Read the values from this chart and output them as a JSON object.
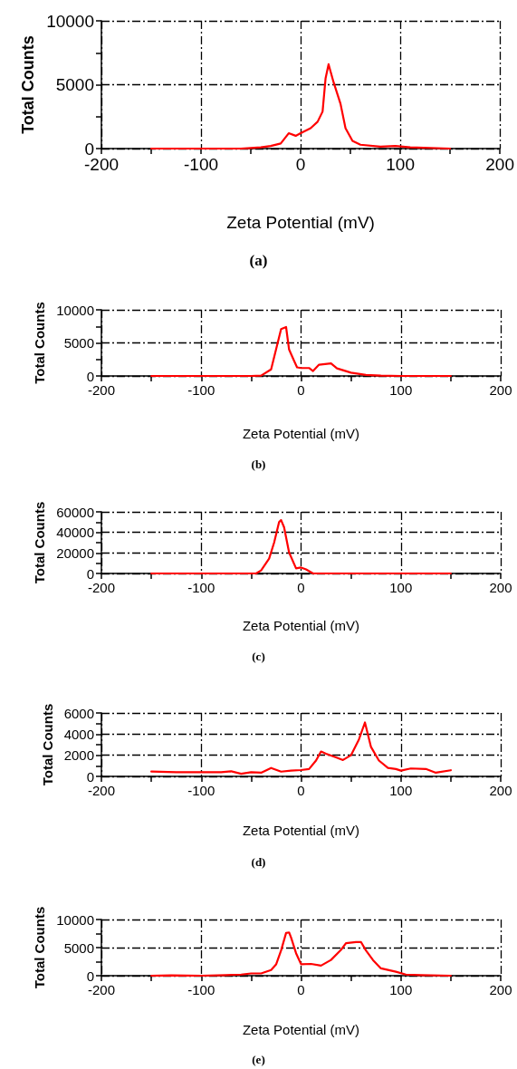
{
  "chart_data": [
    {
      "type": "line",
      "xlabel": "Zeta Potential (mV)",
      "ylabel": "Total Counts",
      "annotations": [
        "(a)"
      ],
      "grid": true,
      "marker": "none",
      "xlim": [
        -200,
        200
      ],
      "xticks": [
        -200,
        {
          "value": -150,
          "label": null
        },
        -100,
        {
          "value": -50,
          "label": null
        },
        0,
        {
          "value": 50,
          "label": null
        },
        100,
        {
          "value": 150,
          "label": null
        },
        200
      ],
      "ylim": [
        0,
        10000
      ],
      "yticks": [
        0,
        {
          "value": 2500,
          "label": null
        },
        5000,
        {
          "value": 7500,
          "label": null
        },
        10000
      ],
      "series": [
        {
          "color": "#ff0000",
          "x": [
            -150,
            -100,
            -60,
            -50,
            -40,
            -30,
            -20,
            -12,
            -5,
            0,
            10,
            17,
            22,
            25,
            28,
            33,
            40,
            45,
            52,
            60,
            80,
            95,
            100,
            110,
            150
          ],
          "values": [
            0,
            0,
            0,
            50,
            100,
            200,
            400,
            1200,
            1000,
            1200,
            1600,
            2100,
            2900,
            5500,
            6600,
            5200,
            3500,
            1600,
            600,
            300,
            150,
            200,
            170,
            100,
            0
          ]
        }
      ]
    },
    {
      "type": "line",
      "xlabel": "Zeta Potential (mV)",
      "ylabel": "Total Counts",
      "annotations": [
        "(b)"
      ],
      "grid": true,
      "marker": "none",
      "xlim": [
        -200,
        200
      ],
      "xticks": [
        -200,
        {
          "value": -150,
          "label": null
        },
        -100,
        {
          "value": -50,
          "label": null
        },
        0,
        {
          "value": 50,
          "label": null
        },
        100,
        {
          "value": 150,
          "label": null
        },
        200
      ],
      "ylim": [
        0,
        10000
      ],
      "yticks": [
        0,
        {
          "value": 2500,
          "label": null
        },
        5000,
        {
          "value": 7500,
          "label": null
        },
        10000
      ],
      "series": [
        {
          "color": "#ff0000",
          "x": [
            -150,
            -50,
            -40,
            -30,
            -20,
            -15,
            -12,
            -7,
            -4,
            0,
            8,
            12,
            18,
            30,
            36,
            50,
            65,
            80,
            100,
            150
          ],
          "values": [
            0,
            0,
            50,
            1000,
            7100,
            7400,
            4000,
            2300,
            1300,
            1200,
            1200,
            750,
            1700,
            1900,
            1150,
            500,
            150,
            50,
            0,
            0
          ]
        }
      ]
    },
    {
      "type": "line",
      "xlabel": "Zeta Potential (mV)",
      "ylabel": "Total Counts",
      "annotations": [
        "(c)"
      ],
      "grid": true,
      "marker": "none",
      "xlim": [
        -200,
        200
      ],
      "xticks": [
        -200,
        {
          "value": -150,
          "label": null
        },
        -100,
        {
          "value": -50,
          "label": null
        },
        0,
        {
          "value": 50,
          "label": null
        },
        100,
        {
          "value": 150,
          "label": null
        },
        200
      ],
      "ylim": [
        0,
        60000
      ],
      "yticks": [
        0,
        {
          "value": 10000,
          "label": null
        },
        20000,
        {
          "value": 30000,
          "label": null
        },
        40000,
        {
          "value": 50000,
          "label": null
        },
        60000
      ],
      "series": [
        {
          "color": "#ff0000",
          "x": [
            -150,
            -45,
            -40,
            -32,
            -27,
            -22,
            -20,
            -17,
            -12,
            -5,
            0,
            5,
            12,
            150
          ],
          "values": [
            0,
            0,
            3000,
            14500,
            30000,
            50000,
            52000,
            45000,
            20500,
            5000,
            5800,
            4000,
            0,
            0
          ]
        }
      ]
    },
    {
      "type": "line",
      "xlabel": "Zeta Potential (mV)",
      "ylabel": "Total Counts",
      "annotations": [
        "(d)"
      ],
      "grid": true,
      "marker": "none",
      "xlim": [
        -200,
        200
      ],
      "xticks": [
        -200,
        {
          "value": -150,
          "label": null
        },
        -100,
        {
          "value": -50,
          "label": null
        },
        0,
        {
          "value": 50,
          "label": null
        },
        100,
        {
          "value": 150,
          "label": null
        },
        200
      ],
      "ylim": [
        0,
        6000
      ],
      "yticks": [
        0,
        {
          "value": 1000,
          "label": null
        },
        2000,
        {
          "value": 3000,
          "label": null
        },
        4000,
        {
          "value": 5000,
          "label": null
        },
        6000
      ],
      "series": [
        {
          "color": "#ff0000",
          "x": [
            -150,
            -125,
            -100,
            -80,
            -70,
            -60,
            -50,
            -40,
            -30,
            -20,
            -10,
            0,
            8,
            15,
            20,
            25,
            35,
            42,
            50,
            58,
            64,
            70,
            78,
            87,
            95,
            100,
            110,
            125,
            135,
            150
          ],
          "values": [
            460,
            400,
            400,
            400,
            480,
            250,
            400,
            350,
            800,
            450,
            550,
            600,
            700,
            1500,
            2350,
            2150,
            1800,
            1550,
            2000,
            3500,
            5100,
            2800,
            1500,
            800,
            700,
            550,
            750,
            700,
            350,
            580
          ]
        }
      ]
    },
    {
      "type": "line",
      "xlabel": "Zeta Potential (mV)",
      "ylabel": "Total Counts",
      "annotations": [
        "(e)"
      ],
      "grid": true,
      "marker": "none",
      "xlim": [
        -200,
        200
      ],
      "xticks": [
        -200,
        {
          "value": -150,
          "label": null
        },
        -100,
        {
          "value": -50,
          "label": null
        },
        0,
        {
          "value": 50,
          "label": null
        },
        100,
        {
          "value": 150,
          "label": null
        },
        200
      ],
      "ylim": [
        0,
        10000
      ],
      "yticks": [
        0,
        {
          "value": 2500,
          "label": null
        },
        5000,
        {
          "value": 7500,
          "label": null
        },
        10000
      ],
      "series": [
        {
          "color": "#ff0000",
          "x": [
            -150,
            -130,
            -100,
            -75,
            -60,
            -50,
            -40,
            -30,
            -25,
            -20,
            -15,
            -12,
            -10,
            -5,
            0,
            10,
            20,
            30,
            40,
            45,
            55,
            60,
            65,
            72,
            80,
            95,
            105,
            120,
            150
          ],
          "values": [
            0,
            50,
            0,
            100,
            200,
            400,
            400,
            1000,
            2000,
            4500,
            7600,
            7700,
            6800,
            4000,
            2050,
            2100,
            1800,
            2800,
            4600,
            5800,
            6000,
            6000,
            4500,
            2800,
            1300,
            700,
            200,
            100,
            0
          ]
        }
      ]
    }
  ]
}
